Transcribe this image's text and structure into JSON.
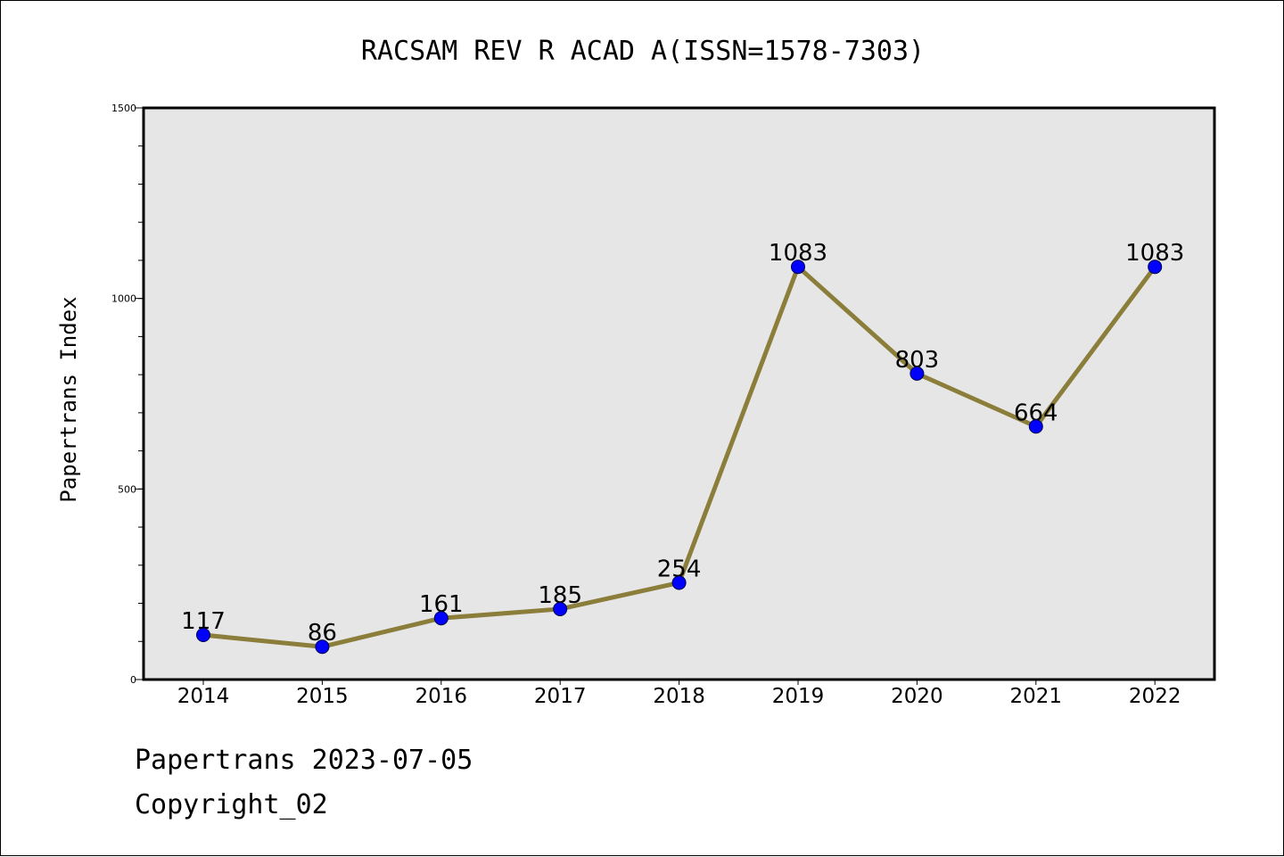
{
  "chart_data": {
    "type": "line",
    "title": "RACSAM REV R ACAD A(ISSN=1578-7303)",
    "xlabel": "",
    "ylabel": "Papertrans Index",
    "categories": [
      "2014",
      "2015",
      "2016",
      "2017",
      "2018",
      "2019",
      "2020",
      "2021",
      "2022"
    ],
    "values": [
      117,
      86,
      161,
      185,
      254,
      1083,
      803,
      664,
      1083
    ],
    "data_labels": [
      "117",
      "86",
      "161",
      "185",
      "254",
      "1083",
      "803",
      "664",
      "1083"
    ],
    "ylim": [
      0,
      1500
    ],
    "y_ticks": [
      0,
      500,
      1000,
      1500
    ],
    "y_tick_labels": [
      "0",
      "500",
      "1000",
      "1500"
    ],
    "grid": false,
    "line_color": "#8b7d3a",
    "marker_color": "#0000ff",
    "plot_background": "#e6e6e6"
  },
  "footer": {
    "line1": "Papertrans 2023-07-05",
    "line2": "Copyright_02"
  }
}
